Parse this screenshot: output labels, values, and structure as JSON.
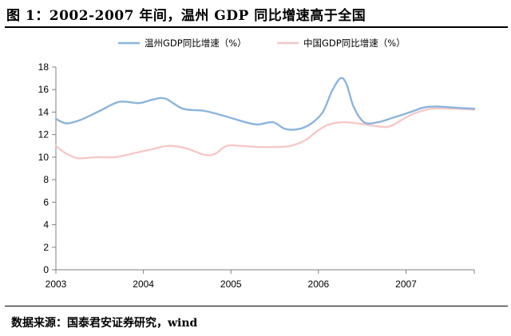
{
  "header": {
    "title": "图  1：2002-2007 年间，温州 GDP 同比增速高于全国"
  },
  "footer": {
    "source": "数据来源：国泰君安证券研究，wind"
  },
  "colors": {
    "wenzhou": "#8cb4dc",
    "china": "#f6c8c8",
    "axis": "#808080"
  },
  "chart_data": {
    "type": "line",
    "title": "",
    "xlabel": "",
    "ylabel": "",
    "x_ticks": [
      "2003",
      "2004",
      "2005",
      "2006",
      "2007"
    ],
    "y_ticks": [
      "0",
      "2",
      "4",
      "6",
      "8",
      "10",
      "12",
      "14",
      "16",
      "18"
    ],
    "ylim": [
      0,
      18
    ],
    "xlim": [
      2003.0,
      2007.78
    ],
    "grid": false,
    "legend_position": "top",
    "series": [
      {
        "name": "温州GDP同比增速（%）",
        "color": "#8cb4dc",
        "x": [
          2003.0,
          2003.12,
          2003.28,
          2003.5,
          2003.72,
          2003.95,
          2004.1,
          2004.25,
          2004.45,
          2004.7,
          2004.95,
          2005.12,
          2005.3,
          2005.48,
          2005.62,
          2005.78,
          2005.92,
          2006.05,
          2006.15,
          2006.25,
          2006.32,
          2006.4,
          2006.52,
          2006.68,
          2006.85,
          2007.05,
          2007.2,
          2007.35,
          2007.55,
          2007.78
        ],
        "values": [
          13.4,
          13.0,
          13.3,
          14.1,
          14.9,
          14.8,
          15.1,
          15.2,
          14.3,
          14.1,
          13.6,
          13.2,
          12.9,
          13.1,
          12.5,
          12.5,
          13.0,
          14.0,
          15.8,
          17.0,
          16.5,
          14.5,
          13.1,
          13.1,
          13.5,
          14.0,
          14.4,
          14.5,
          14.4,
          14.3
        ]
      },
      {
        "name": "中国GDP同比增速（%）",
        "color": "#f6c8c8",
        "x": [
          2003.0,
          2003.1,
          2003.25,
          2003.45,
          2003.68,
          2003.92,
          2004.1,
          2004.28,
          2004.48,
          2004.7,
          2004.82,
          2004.95,
          2005.12,
          2005.3,
          2005.5,
          2005.68,
          2005.85,
          2006.0,
          2006.12,
          2006.28,
          2006.45,
          2006.62,
          2006.8,
          2006.95,
          2007.1,
          2007.3,
          2007.55,
          2007.78
        ],
        "values": [
          11.0,
          10.4,
          9.9,
          10.0,
          10.0,
          10.4,
          10.7,
          11.0,
          10.8,
          10.2,
          10.3,
          11.0,
          11.0,
          10.9,
          10.9,
          11.0,
          11.5,
          12.4,
          12.9,
          13.1,
          13.0,
          12.8,
          12.7,
          13.3,
          13.9,
          14.3,
          14.3,
          14.2
        ]
      }
    ]
  }
}
